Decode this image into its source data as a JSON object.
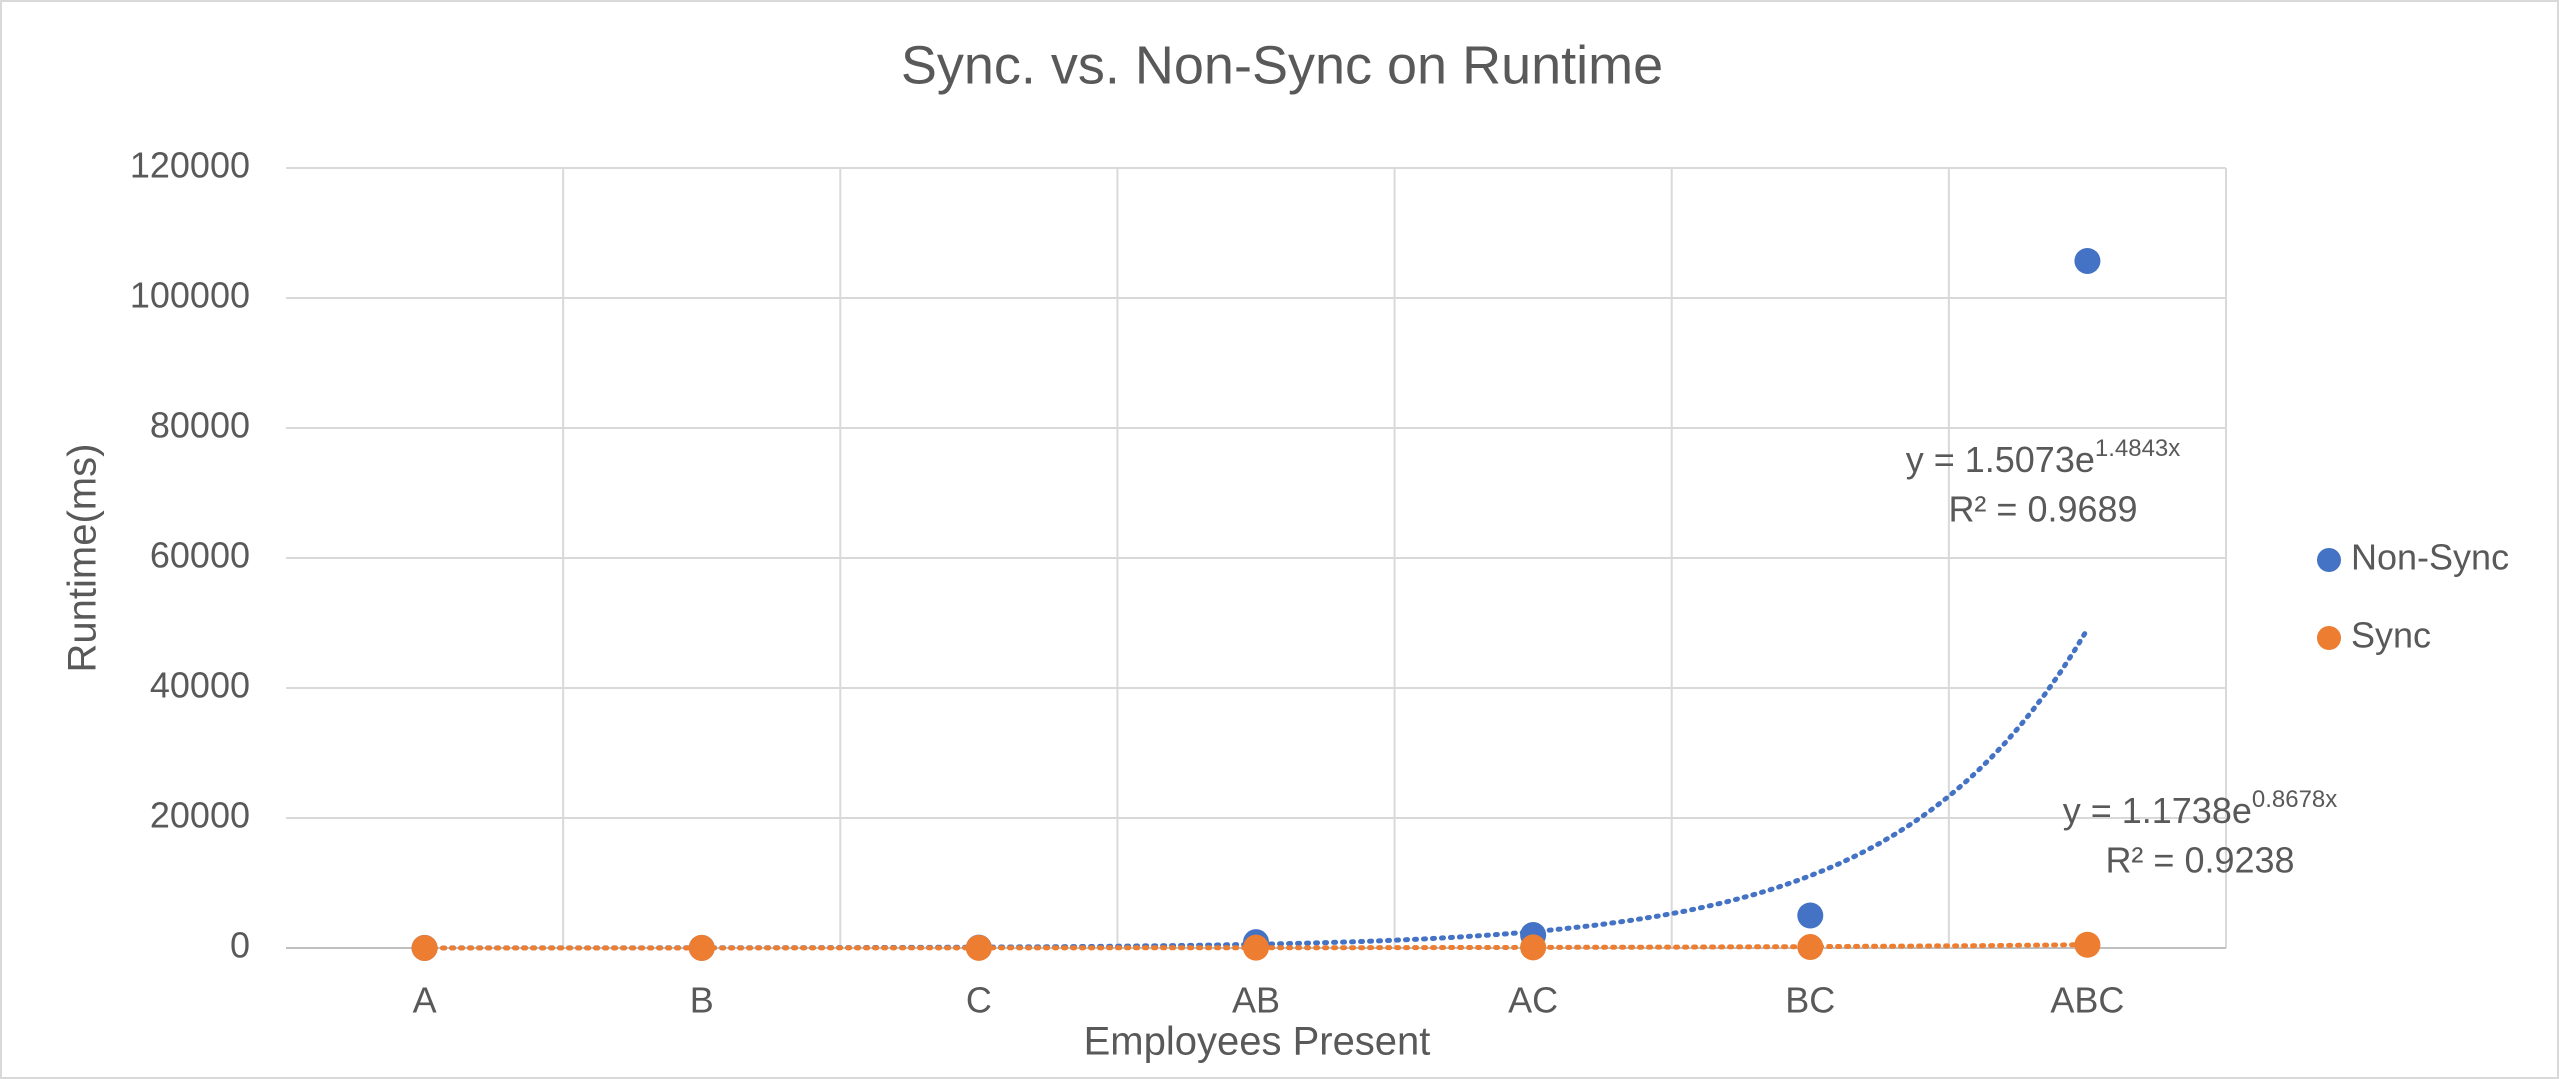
{
  "chart_data": {
    "type": "scatter",
    "title": "Sync. vs. Non-Sync on  Runtime",
    "x_label": "Employees Present",
    "y_label": "Runtime(ms)",
    "categories": [
      "A",
      "B",
      "C",
      "AB",
      "AC",
      "BC",
      "ABC"
    ],
    "ylim": [
      0,
      120000
    ],
    "yticks": [
      0,
      20000,
      40000,
      60000,
      80000,
      100000,
      120000
    ],
    "grid": true,
    "legend": "right",
    "series": [
      {
        "name": "Non-Sync",
        "color": "#4472c4",
        "values": [
          10,
          20,
          50,
          900,
          2000,
          5000,
          105700
        ],
        "trendline": {
          "type": "exponential",
          "a": 1.5073,
          "b": 1.4843,
          "label": "y = 1.5073e",
          "label_exponent": "1.4843x",
          "r2_label": "R² = 0.9689"
        }
      },
      {
        "name": "Sync",
        "color": "#ed7d31",
        "values": [
          5,
          10,
          20,
          50,
          100,
          150,
          500
        ],
        "trendline": {
          "type": "exponential",
          "a": 1.1738,
          "b": 0.8678,
          "label": "y = 1.1738e",
          "label_exponent": "0.8678x",
          "r2_label": "R² = 0.9238"
        }
      }
    ]
  }
}
